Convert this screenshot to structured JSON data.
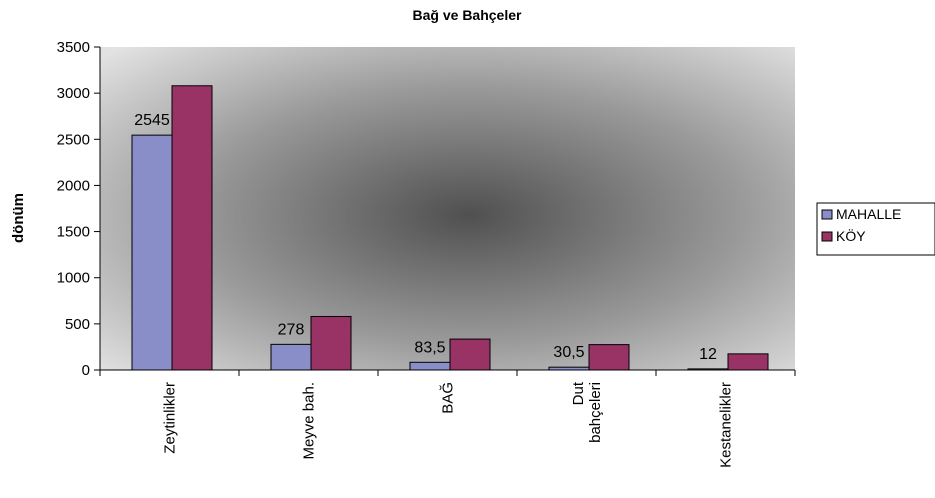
{
  "chart_data": {
    "type": "bar",
    "title": "Bağ ve Bahçeler",
    "ylabel": "dönüm",
    "xlabel": "",
    "ylim": [
      0,
      3500
    ],
    "yticks": [
      0,
      500,
      1000,
      1500,
      2000,
      2500,
      3000,
      3500
    ],
    "categories": [
      [
        "Zeytinlikler"
      ],
      [
        "Meyve bah."
      ],
      [
        "BAĞ"
      ],
      [
        "Dut",
        "bahçeleri"
      ],
      [
        "Kestanelikler"
      ]
    ],
    "series": [
      {
        "name": "MAHALLE",
        "color": "#8a8ec8",
        "values": [
          2545,
          278,
          83.5,
          30.5,
          12
        ],
        "data_labels": [
          "2545",
          "278",
          "83,5",
          "30,5",
          "12"
        ]
      },
      {
        "name": "KÖY",
        "color": "#993366",
        "values": [
          3080,
          580,
          335,
          275,
          175
        ]
      }
    ],
    "legend_position": "right",
    "grid": false,
    "plot_background": "radial gray gradient"
  }
}
